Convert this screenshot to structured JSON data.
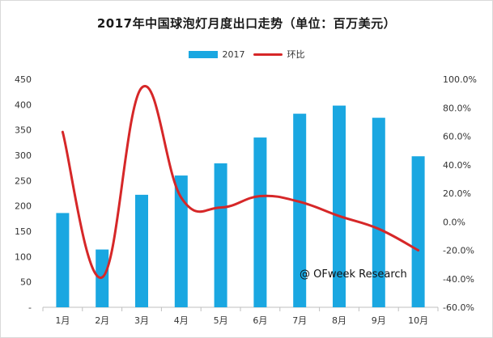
{
  "chart_data": {
    "type": "bar",
    "title": "2017年中国球泡灯月度出口走势（单位：百万美元）",
    "categories": [
      "1月",
      "2月",
      "3月",
      "4月",
      "5月",
      "6月",
      "7月",
      "8月",
      "9月",
      "10月"
    ],
    "series": [
      {
        "name": "2017",
        "type": "bar",
        "axis": "left",
        "color": "#1aa7e1",
        "values": [
          186,
          114,
          222,
          260,
          284,
          335,
          382,
          398,
          374,
          298
        ]
      },
      {
        "name": "环比",
        "type": "line",
        "axis": "right",
        "color": "#d62728",
        "values": [
          63.0,
          -39.0,
          94.0,
          17.0,
          10.0,
          18.0,
          14.0,
          4.0,
          -5.0,
          -20.0
        ]
      }
    ],
    "y_left": {
      "range": [
        0,
        450
      ],
      "ticks": [
        "-",
        "50",
        "100",
        "150",
        "200",
        "250",
        "300",
        "350",
        "400",
        "450"
      ]
    },
    "y_right": {
      "range": [
        -60,
        100
      ],
      "ticks": [
        "-60.0%",
        "-40.0%",
        "-20.0%",
        "0.0%",
        "20.0%",
        "40.0%",
        "60.0%",
        "80.0%",
        "100.0%"
      ]
    },
    "legend_position": "top-center",
    "grid": false,
    "watermark": "@ OFweek Research"
  }
}
